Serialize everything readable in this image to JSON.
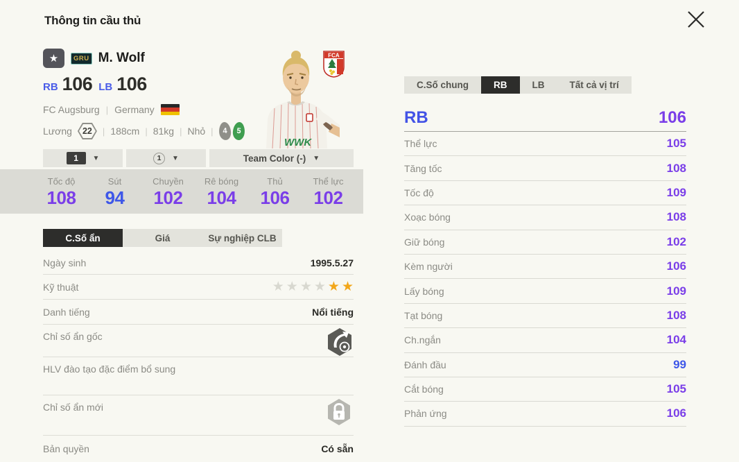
{
  "icons": {
    "star": "★",
    "caret": "▼"
  },
  "header": {
    "title": "Thông tin cầu thủ"
  },
  "player": {
    "name": "M. Wolf",
    "grade_badge": "GRU",
    "pos1": {
      "label": "RB",
      "value": "106"
    },
    "pos2": {
      "label": "LB",
      "value": "106"
    },
    "club": "FC Augsburg",
    "nation": "Germany",
    "salary_label": "Lương",
    "salary": "22",
    "height": "188cm",
    "weight": "81kg",
    "body_type": "Nhỏ",
    "weak_foot": "4",
    "strong_foot": "5",
    "jersey_sponsor": "WWK",
    "club_logo_text": "FCA"
  },
  "dropdowns": {
    "first": "1",
    "second": "1",
    "team_color": "Team Color (-)"
  },
  "summary_stats": [
    {
      "label": "Tốc độ",
      "value": "108",
      "tier": "purple"
    },
    {
      "label": "Sút",
      "value": "94",
      "tier": "blue"
    },
    {
      "label": "Chuyền",
      "value": "102",
      "tier": "purple"
    },
    {
      "label": "Rê bóng",
      "value": "104",
      "tier": "purple"
    },
    {
      "label": "Thủ",
      "value": "106",
      "tier": "purple"
    },
    {
      "label": "Thể lực",
      "value": "102",
      "tier": "purple"
    }
  ],
  "left_tabs": [
    {
      "label": "C.Số ẩn",
      "active": true
    },
    {
      "label": "Giá"
    },
    {
      "label": "Sự nghiệp CLB"
    }
  ],
  "info": {
    "birth": {
      "label": "Ngày sinh",
      "value": "1995.5.27"
    },
    "skill": {
      "label": "Kỹ thuật",
      "stars": {
        "gray": 4,
        "gold": 2
      }
    },
    "fame": {
      "label": "Danh tiếng",
      "value": "Nổi tiếng"
    },
    "hidden_origin": {
      "label": "Chỉ số ẩn gốc"
    },
    "coach_trait": {
      "label": "HLV đào tạo đặc điểm bổ sung"
    },
    "hidden_new": {
      "label": "Chỉ số ẩn mới"
    },
    "license": {
      "label": "Bản quyền",
      "value": "Có sẵn"
    }
  },
  "right_tabs": [
    {
      "label": "C.Số chung"
    },
    {
      "label": "RB",
      "active": true
    },
    {
      "label": "LB"
    },
    {
      "label": "Tất cả vị trí"
    }
  ],
  "position_header": {
    "label": "RB",
    "value": "106"
  },
  "detail_stats": [
    {
      "label": "Thể lực",
      "value": "105",
      "tier": "purple"
    },
    {
      "label": "Tăng tốc",
      "value": "108",
      "tier": "purple"
    },
    {
      "label": "Tốc độ",
      "value": "109",
      "tier": "purple"
    },
    {
      "label": "Xoạc bóng",
      "value": "108",
      "tier": "purple"
    },
    {
      "label": "Giữ bóng",
      "value": "102",
      "tier": "purple"
    },
    {
      "label": "Kèm người",
      "value": "106",
      "tier": "purple"
    },
    {
      "label": "Lấy bóng",
      "value": "109",
      "tier": "purple"
    },
    {
      "label": "Tạt bóng",
      "value": "108",
      "tier": "purple"
    },
    {
      "label": "Ch.ngắn",
      "value": "104",
      "tier": "purple"
    },
    {
      "label": "Đánh đầu",
      "value": "99",
      "tier": "blue"
    },
    {
      "label": "Cắt bóng",
      "value": "105",
      "tier": "purple"
    },
    {
      "label": "Phản ứng",
      "value": "106",
      "tier": "purple"
    }
  ],
  "colors": {
    "high_stat": "#7a3ee8",
    "mid_stat": "#3e57e8",
    "star_gold": "#f2a71b",
    "active_tab": "#2d2d2b"
  }
}
